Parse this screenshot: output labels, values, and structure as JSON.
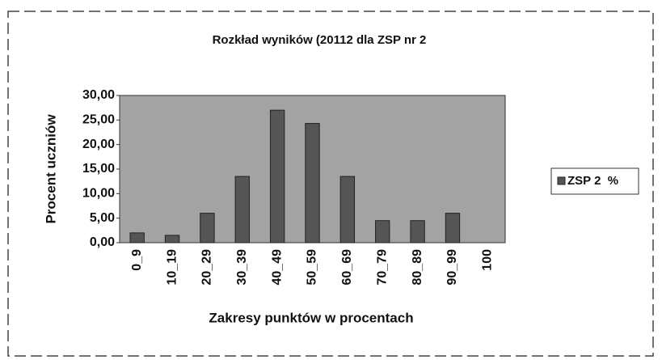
{
  "chart_data": {
    "type": "bar",
    "title": "Rozkład wyników (20112 dla ZSP nr 2",
    "x_label": "Zakresy punktów w procentach",
    "y_label": "Procent uczniów",
    "categories": [
      "0_9",
      "10_19",
      "20_29",
      "30_39",
      "40_49",
      "50_59",
      "60_69",
      "70_79",
      "80_89",
      "90_99",
      "100"
    ],
    "series": [
      {
        "name": "ZSP 2  %",
        "color": "#555555",
        "values": [
          2,
          1.5,
          6,
          13.5,
          27,
          24.3,
          13.5,
          4.5,
          4.5,
          6,
          0
        ]
      }
    ],
    "ylim": [
      0,
      30
    ],
    "yticks": [
      {
        "value": 0,
        "label": "0,00"
      },
      {
        "value": 5,
        "label": "5,00"
      },
      {
        "value": 10,
        "label": "10,00"
      },
      {
        "value": 15,
        "label": "15,00"
      },
      {
        "value": 20,
        "label": "20,00"
      },
      {
        "value": 25,
        "label": "25,00"
      },
      {
        "value": 30,
        "label": "30,00"
      }
    ],
    "legend": "right"
  }
}
